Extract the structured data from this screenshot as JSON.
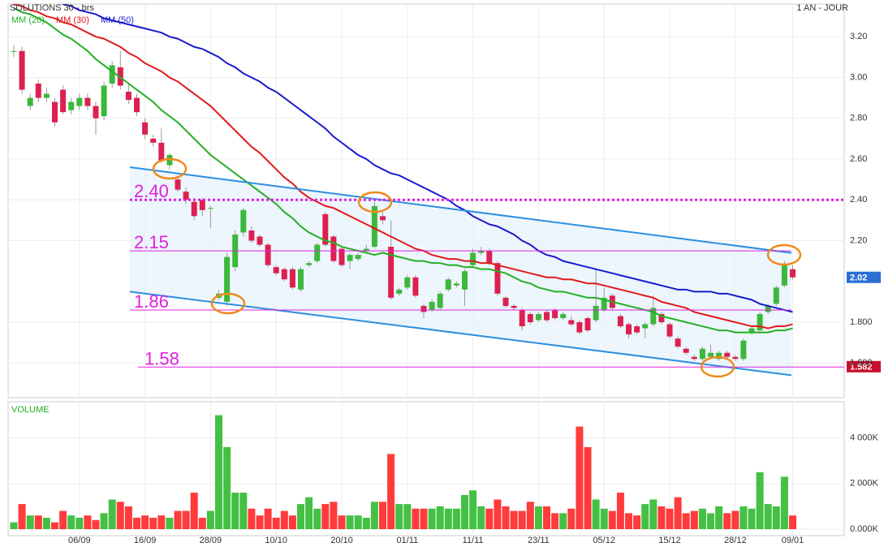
{
  "chart_data": [
    {
      "type": "candlestick",
      "title": "SOLUTIONS 30 - brs",
      "subtitle": "1 AN - JOUR",
      "categories": [
        null,
        null,
        null,
        null,
        null,
        null,
        null,
        null,
        "06/09",
        null,
        null,
        null,
        null,
        null,
        null,
        null,
        "16/09",
        null,
        null,
        null,
        null,
        null,
        null,
        null,
        "28/09",
        null,
        null,
        null,
        null,
        null,
        null,
        null,
        "10/10",
        null,
        null,
        null,
        null,
        null,
        null,
        null,
        "20/10",
        null,
        null,
        null,
        null,
        null,
        null,
        null,
        "01/11",
        null,
        null,
        null,
        null,
        null,
        null,
        null,
        "11/11",
        null,
        null,
        null,
        null,
        null,
        null,
        null,
        "23/11",
        null,
        null,
        null,
        null,
        null,
        null,
        null,
        "05/12",
        null,
        null,
        null,
        null,
        null,
        null,
        null,
        "15/12",
        null,
        null,
        null,
        null,
        null,
        null,
        null,
        "28/12",
        null,
        null,
        null,
        null,
        null,
        null,
        "09/01"
      ],
      "open": [
        3.13,
        3.13,
        2.86,
        2.97,
        2.9,
        2.88,
        2.94,
        2.84,
        2.86,
        2.9,
        2.86,
        2.81,
        2.97,
        3.05,
        2.93,
        2.9,
        2.78,
        2.7,
        2.68,
        2.57,
        2.5,
        2.44,
        2.39,
        2.4,
        2.36,
        1.92,
        1.9,
        2.07,
        2.24,
        2.25,
        2.22,
        2.18,
        2.07,
        2.06,
        2.06,
        1.96,
        2.08,
        2.1,
        2.33,
        2.22,
        2.16,
        2.1,
        2.11,
        2.15,
        2.17,
        2.32,
        2.17,
        1.94,
        1.97,
        2.02,
        1.88,
        1.86,
        1.87,
        1.96,
        1.98,
        1.96,
        2.08,
        2.14,
        2.15,
        2.09,
        1.92,
        1.88,
        1.86,
        1.84,
        1.81,
        1.85,
        1.86,
        1.82,
        1.81,
        1.8,
        1.82,
        1.81,
        1.86,
        1.93,
        1.83,
        1.79,
        1.78,
        1.77,
        1.79,
        1.84,
        1.79,
        1.72,
        1.67,
        1.63,
        1.62,
        1.63,
        1.62,
        1.65,
        1.63,
        1.62,
        1.75,
        1.76,
        1.85,
        1.89,
        1.98,
        2.06
      ],
      "high": [
        3.16,
        3.15,
        2.92,
        2.99,
        2.95,
        2.9,
        2.96,
        2.9,
        2.92,
        2.92,
        2.88,
        2.98,
        3.08,
        3.13,
        2.97,
        2.92,
        2.8,
        2.72,
        2.75,
        2.63,
        2.52,
        2.46,
        2.41,
        2.41,
        2.37,
        1.96,
        2.14,
        2.25,
        2.36,
        2.27,
        2.23,
        2.19,
        2.08,
        2.07,
        2.07,
        2.07,
        2.1,
        2.19,
        2.34,
        2.23,
        2.17,
        2.14,
        2.14,
        2.18,
        2.39,
        2.34,
        2.3,
        1.97,
        2.03,
        2.03,
        1.89,
        1.91,
        1.95,
        2.02,
        2.0,
        2.06,
        2.16,
        2.17,
        2.16,
        2.1,
        1.93,
        1.89,
        1.87,
        1.85,
        1.85,
        1.86,
        1.87,
        1.85,
        1.83,
        1.81,
        1.83,
        2.06,
        1.97,
        1.94,
        1.84,
        1.8,
        1.79,
        1.8,
        1.93,
        1.85,
        1.8,
        1.73,
        1.68,
        1.64,
        1.68,
        1.69,
        1.66,
        1.66,
        1.64,
        1.72,
        1.78,
        1.85,
        1.89,
        1.98,
        2.1,
        2.08
      ],
      "low": [
        3.1,
        2.92,
        2.84,
        2.88,
        2.88,
        2.76,
        2.82,
        2.82,
        2.84,
        2.84,
        2.72,
        2.79,
        2.95,
        2.94,
        2.87,
        2.81,
        2.7,
        2.66,
        2.58,
        2.55,
        2.44,
        2.38,
        2.3,
        2.32,
        2.26,
        1.91,
        1.88,
        2.05,
        2.22,
        2.19,
        2.17,
        2.07,
        2.03,
        2.0,
        1.96,
        1.95,
        2.07,
        2.09,
        2.17,
        2.09,
        2.07,
        2.06,
        2.1,
        2.14,
        2.16,
        2.28,
        1.91,
        1.93,
        1.96,
        1.92,
        1.82,
        1.85,
        1.86,
        1.95,
        1.97,
        1.88,
        2.07,
        2.13,
        2.08,
        1.93,
        1.87,
        1.86,
        1.76,
        1.79,
        1.8,
        1.8,
        1.81,
        1.81,
        1.78,
        1.74,
        1.75,
        1.8,
        1.85,
        1.86,
        1.77,
        1.72,
        1.74,
        1.72,
        1.78,
        1.79,
        1.72,
        1.67,
        1.64,
        1.61,
        1.61,
        1.62,
        1.61,
        1.62,
        1.61,
        1.61,
        1.74,
        1.75,
        1.84,
        1.88,
        1.97,
        2.01
      ],
      "close": [
        3.13,
        2.94,
        2.9,
        2.9,
        2.92,
        2.78,
        2.83,
        2.88,
        2.9,
        2.86,
        2.8,
        2.96,
        3.06,
        2.96,
        2.89,
        2.83,
        2.72,
        2.68,
        2.59,
        2.62,
        2.45,
        2.4,
        2.32,
        2.35,
        2.36,
        1.94,
        2.12,
        2.23,
        2.35,
        2.2,
        2.18,
        2.08,
        2.04,
        2.01,
        1.97,
        2.06,
        2.09,
        2.18,
        2.18,
        2.1,
        2.08,
        2.13,
        2.13,
        2.16,
        2.37,
        2.3,
        1.92,
        1.96,
        2.02,
        1.93,
        1.85,
        1.9,
        1.94,
        2.01,
        1.99,
        2.05,
        2.14,
        2.15,
        2.09,
        1.94,
        1.88,
        1.87,
        1.78,
        1.8,
        1.84,
        1.81,
        1.82,
        1.84,
        1.79,
        1.75,
        1.76,
        1.88,
        1.92,
        1.87,
        1.78,
        1.74,
        1.75,
        1.79,
        1.87,
        1.8,
        1.73,
        1.68,
        1.65,
        1.62,
        1.67,
        1.65,
        1.65,
        1.63,
        1.62,
        1.71,
        1.77,
        1.84,
        1.88,
        1.97,
        2.08,
        2.02
      ],
      "up_color": "#3cb83c",
      "down_color": "#dd2050",
      "series": [
        {
          "name": "MM (20)",
          "color": "#22b022",
          "values": [
            3.34,
            3.32,
            3.31,
            3.29,
            3.27,
            3.24,
            3.21,
            3.19,
            3.16,
            3.13,
            3.09,
            3.06,
            3.03,
            3.0,
            2.97,
            2.94,
            2.91,
            2.88,
            2.84,
            2.81,
            2.78,
            2.74,
            2.7,
            2.66,
            2.62,
            2.59,
            2.56,
            2.53,
            2.5,
            2.47,
            2.44,
            2.41,
            2.38,
            2.34,
            2.31,
            2.27,
            2.24,
            2.22,
            2.2,
            2.19,
            2.17,
            2.16,
            2.15,
            2.14,
            2.13,
            2.14,
            2.13,
            2.12,
            2.11,
            2.1,
            2.1,
            2.09,
            2.09,
            2.08,
            2.08,
            2.07,
            2.07,
            2.06,
            2.06,
            2.05,
            2.04,
            2.02,
            2.0,
            1.99,
            1.97,
            1.96,
            1.95,
            1.95,
            1.94,
            1.93,
            1.92,
            1.92,
            1.91,
            1.9,
            1.89,
            1.88,
            1.87,
            1.86,
            1.85,
            1.83,
            1.82,
            1.81,
            1.8,
            1.79,
            1.78,
            1.77,
            1.76,
            1.76,
            1.75,
            1.75,
            1.75,
            1.75,
            1.75,
            1.76,
            1.76,
            1.77
          ]
        },
        {
          "name": "MM (30)",
          "color": "#e01a1a",
          "values": [
            3.36,
            3.35,
            3.33,
            3.32,
            3.3,
            3.29,
            3.27,
            3.26,
            3.24,
            3.22,
            3.2,
            3.19,
            3.17,
            3.15,
            3.12,
            3.1,
            3.07,
            3.05,
            3.03,
            3.0,
            2.98,
            2.95,
            2.92,
            2.89,
            2.86,
            2.82,
            2.78,
            2.74,
            2.7,
            2.66,
            2.63,
            2.59,
            2.55,
            2.51,
            2.48,
            2.44,
            2.41,
            2.39,
            2.37,
            2.36,
            2.34,
            2.32,
            2.3,
            2.28,
            2.26,
            2.24,
            2.22,
            2.2,
            2.18,
            2.16,
            2.15,
            2.13,
            2.12,
            2.11,
            2.11,
            2.1,
            2.1,
            2.09,
            2.09,
            2.08,
            2.07,
            2.06,
            2.05,
            2.04,
            2.03,
            2.02,
            2.02,
            2.01,
            2.01,
            2.0,
            1.99,
            1.99,
            1.98,
            1.97,
            1.96,
            1.95,
            1.94,
            1.93,
            1.92,
            1.9,
            1.89,
            1.88,
            1.87,
            1.85,
            1.84,
            1.83,
            1.82,
            1.81,
            1.8,
            1.79,
            1.78,
            1.78,
            1.77,
            1.78,
            1.78,
            1.79
          ]
        },
        {
          "name": "MM (50)",
          "color": "#1a1acc",
          "values": [
            3.45,
            3.44,
            3.43,
            3.41,
            3.4,
            3.38,
            3.36,
            3.35,
            3.33,
            3.32,
            3.31,
            3.29,
            3.28,
            3.27,
            3.26,
            3.25,
            3.24,
            3.23,
            3.22,
            3.2,
            3.19,
            3.17,
            3.15,
            3.14,
            3.12,
            3.1,
            3.07,
            3.05,
            3.02,
            3.0,
            2.98,
            2.95,
            2.93,
            2.9,
            2.87,
            2.84,
            2.81,
            2.78,
            2.75,
            2.71,
            2.68,
            2.65,
            2.62,
            2.6,
            2.57,
            2.55,
            2.53,
            2.52,
            2.5,
            2.48,
            2.46,
            2.44,
            2.42,
            2.4,
            2.37,
            2.35,
            2.32,
            2.3,
            2.28,
            2.27,
            2.25,
            2.23,
            2.2,
            2.18,
            2.15,
            2.13,
            2.12,
            2.1,
            2.09,
            2.08,
            2.07,
            2.06,
            2.05,
            2.04,
            2.03,
            2.02,
            2.01,
            2.0,
            1.99,
            1.98,
            1.97,
            1.96,
            1.96,
            1.95,
            1.95,
            1.95,
            1.94,
            1.94,
            1.93,
            1.92,
            1.91,
            1.89,
            1.88,
            1.87,
            1.86,
            1.85
          ]
        }
      ],
      "ylim": [
        1.43,
        3.36
      ],
      "yticks": [
        {
          "value": 3.2,
          "label": "3.20"
        },
        {
          "value": 3,
          "label": "3.00"
        },
        {
          "value": 2.8,
          "label": "2.80"
        },
        {
          "value": 2.6,
          "label": "2.60"
        },
        {
          "value": 2.4,
          "label": "2.40"
        },
        {
          "value": 2.2,
          "label": "2.20"
        },
        {
          "value": 1.8,
          "label": "1.800"
        },
        {
          "value": 1.6,
          "label": "1.600"
        }
      ],
      "grid": true,
      "reference_lines": [
        {
          "value": 2.4,
          "label": "2.40",
          "dashed": true
        },
        {
          "value": 2.15,
          "label": "2.15",
          "dashed": false
        },
        {
          "value": 1.86,
          "label": "1.86",
          "dashed": false
        },
        {
          "value": 1.58,
          "label": "1.58",
          "dashed": false
        }
      ],
      "reference_color": "#e020e0",
      "channel": {
        "color": "#2b8fe0",
        "upper": [
          2.56,
          2.14
        ],
        "lower": [
          1.95,
          1.54
        ]
      },
      "price_tags": [
        {
          "value": 2.02,
          "color": "#2a6fd6"
        },
        {
          "value": 1.582,
          "color": "#c8102e"
        }
      ]
    },
    {
      "type": "bar",
      "title": "VOLUME",
      "values": [
        300,
        1100,
        600,
        600,
        500,
        300,
        800,
        600,
        500,
        600,
        400,
        700,
        1300,
        1200,
        1000,
        500,
        600,
        500,
        600,
        500,
        800,
        800,
        1600,
        500,
        800,
        5000,
        3600,
        1600,
        1600,
        900,
        600,
        900,
        500,
        800,
        600,
        1100,
        1400,
        900,
        1100,
        1200,
        600,
        600,
        600,
        500,
        1200,
        1200,
        3300,
        1100,
        1100,
        900,
        900,
        900,
        1000,
        900,
        900,
        1500,
        1700,
        1000,
        900,
        1300,
        1000,
        800,
        800,
        1200,
        1000,
        1000,
        700,
        700,
        900,
        4500,
        3600,
        1300,
        900,
        800,
        1600,
        700,
        600,
        1100,
        1300,
        1000,
        900,
        1400,
        700,
        800,
        900,
        700,
        1000,
        700,
        800,
        1000,
        900,
        2500,
        1100,
        1000,
        2300,
        600
      ],
      "up_color": "#44c044",
      "down_color": "#ff3b3b",
      "ylim": [
        0,
        5590
      ],
      "yticks": [
        {
          "value": 0,
          "label": "0.000K"
        },
        {
          "value": 2000,
          "label": "2 000K"
        },
        {
          "value": 4000,
          "label": "4 000K"
        }
      ],
      "grid": true
    }
  ]
}
